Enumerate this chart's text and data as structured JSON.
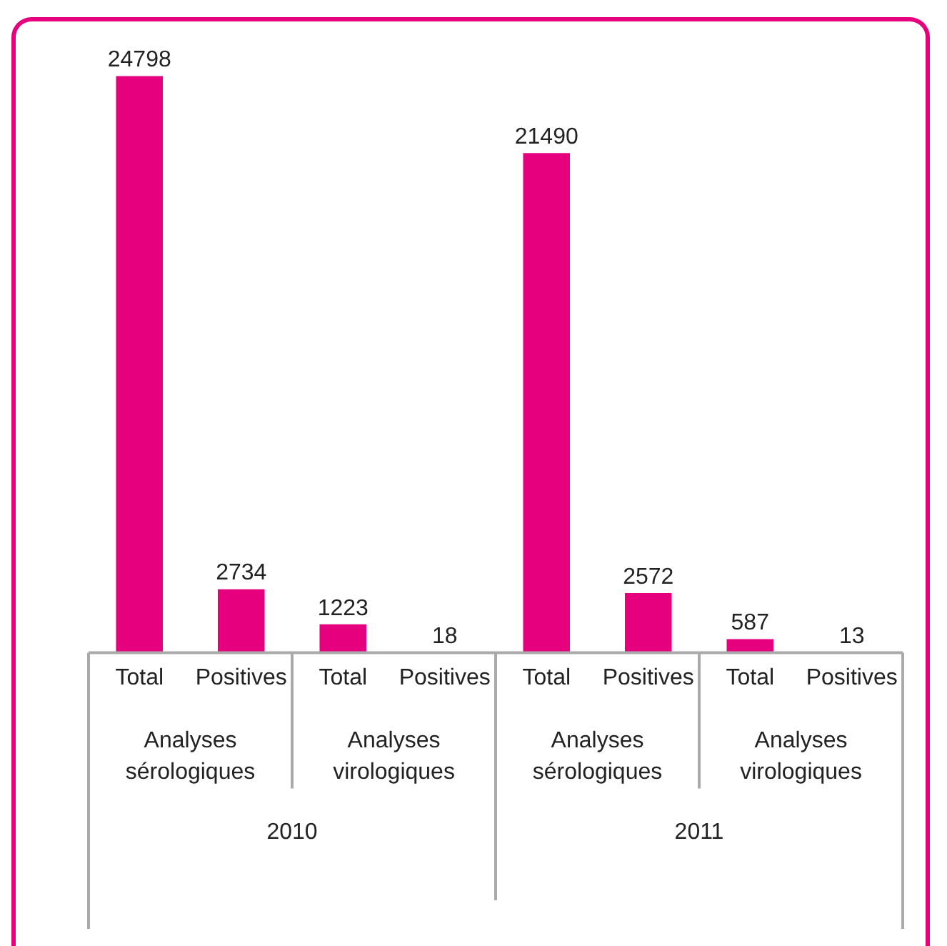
{
  "chart_data": {
    "type": "bar",
    "categories": [
      "Total",
      "Positives",
      "Total",
      "Positives",
      "Total",
      "Positives",
      "Total",
      "Positives"
    ],
    "values": [
      24798,
      2734,
      1223,
      18,
      21490,
      2572,
      587,
      13
    ],
    "color": "#e6007e",
    "data_labels": true,
    "grid": false,
    "legend": false,
    "annotations": [
      "Analyses sérologiques",
      "Analyses virologiques",
      "Analyses sérologiques",
      "Analyses virologiques",
      "2010",
      "2011"
    ]
  }
}
